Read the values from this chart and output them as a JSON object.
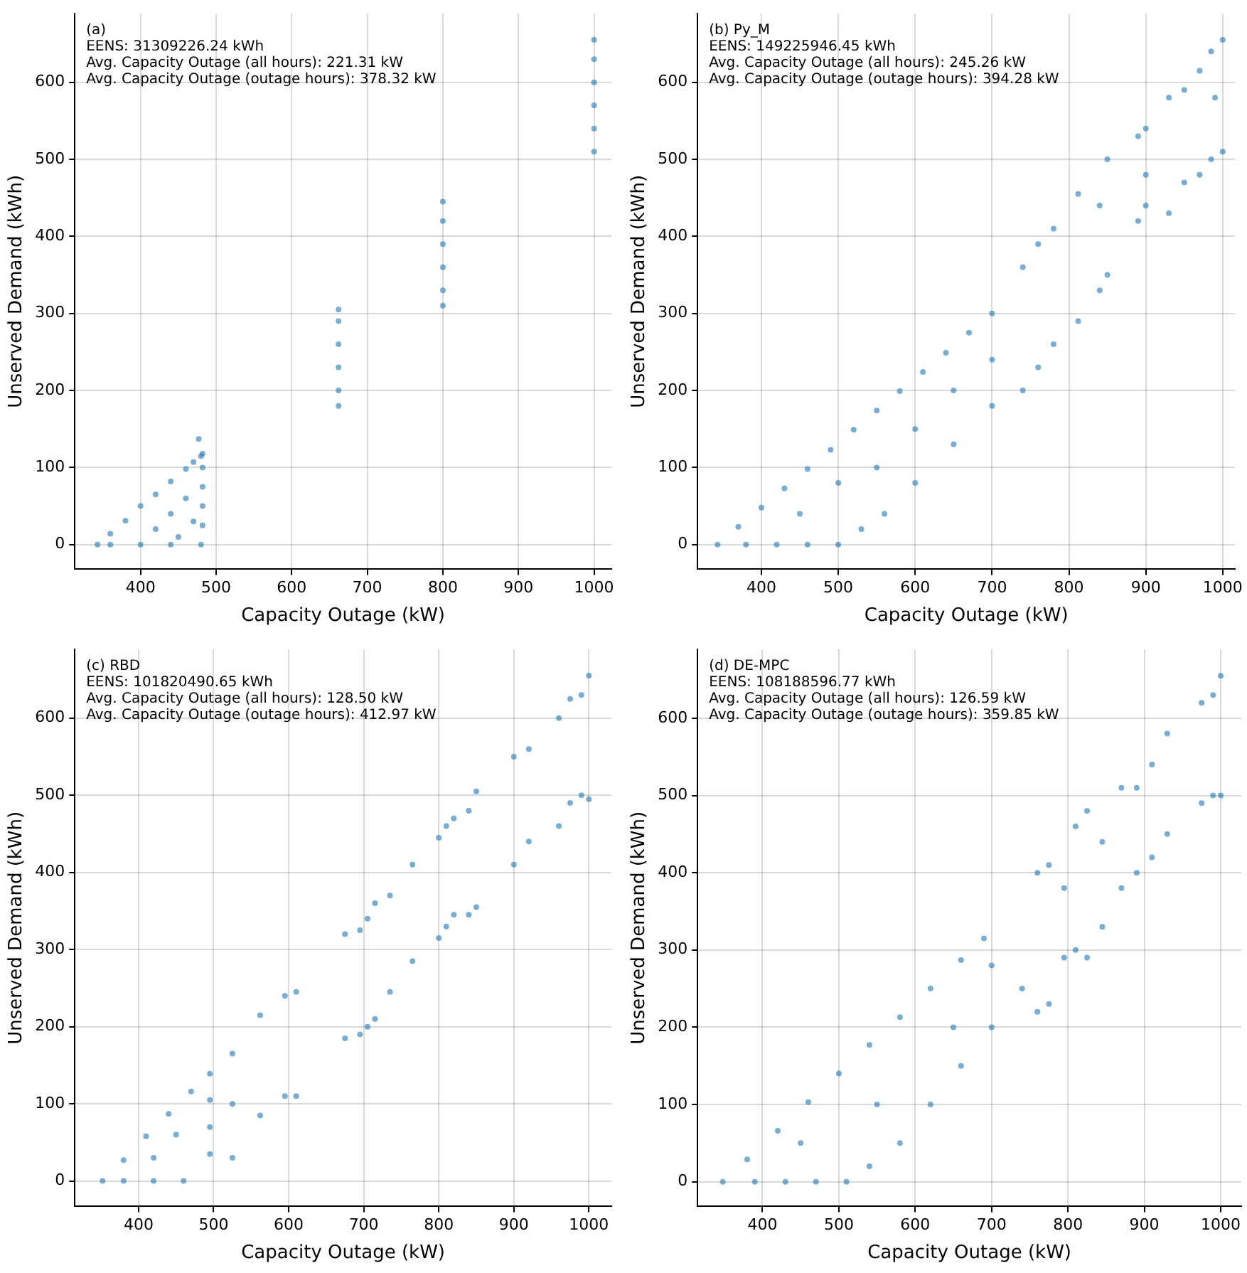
{
  "chart_data": [
    {
      "type": "scatter",
      "annotations": [
        "(a)",
        "EENS: 31309226.24 kWh",
        "Avg. Capacity Outage (all hours): 221.31 kW",
        "Avg. Capacity Outage (outage hours): 378.32 kW"
      ],
      "xlabel": "Capacity Outage (kW)",
      "ylabel": "Unserved Demand (kWh)",
      "color": "#1f77b4",
      "marker": "circle",
      "grid": true,
      "xlim": [
        313,
        1023
      ],
      "xticks": [
        400,
        500,
        600,
        700,
        800,
        900,
        1000
      ],
      "ylim": [
        -32,
        689
      ],
      "yticks": [
        0,
        100,
        200,
        300,
        400,
        500,
        600
      ],
      "x": [
        343,
        360,
        380,
        400,
        420,
        440,
        460,
        470,
        480,
        360,
        400,
        440,
        480,
        482,
        482,
        482,
        482,
        482,
        420,
        440,
        460,
        470,
        450,
        477,
        662,
        662,
        662,
        662,
        662,
        662,
        800,
        800,
        800,
        800,
        800,
        800,
        1000,
        1000,
        1000,
        1000,
        1000,
        1000
      ],
      "values": [
        0,
        14,
        31,
        50,
        65,
        82,
        98,
        107,
        115,
        0,
        0,
        0,
        0,
        25,
        50,
        75,
        100,
        118,
        20,
        40,
        60,
        30,
        10,
        137,
        180,
        200,
        230,
        260,
        290,
        305,
        310,
        330,
        360,
        390,
        420,
        445,
        510,
        540,
        570,
        600,
        630,
        655
      ]
    },
    {
      "type": "scatter",
      "annotations": [
        "(b) Py_M",
        "EENS: 149225946.45 kWh",
        "Avg. Capacity Outage (all hours): 245.26 kW",
        "Avg. Capacity Outage (outage hours): 394.28 kW"
      ],
      "xlabel": "Capacity Outage (kW)",
      "ylabel": "Unserved Demand (kWh)",
      "color": "#1f77b4",
      "marker": "circle",
      "grid": true,
      "xlim": [
        317,
        1016
      ],
      "xticks": [
        400,
        500,
        600,
        700,
        800,
        900,
        1000
      ],
      "ylim": [
        -32,
        689
      ],
      "yticks": [
        0,
        100,
        200,
        300,
        400,
        500,
        600
      ],
      "x": [
        343,
        370,
        400,
        430,
        460,
        490,
        520,
        550,
        580,
        610,
        640,
        670,
        700,
        380,
        420,
        460,
        500,
        530,
        560,
        600,
        650,
        700,
        740,
        760,
        780,
        812,
        840,
        850,
        890,
        900,
        930,
        950,
        970,
        985,
        1000,
        740,
        760,
        780,
        812,
        840,
        850,
        890,
        900,
        930,
        950,
        970,
        985,
        1000,
        450,
        500,
        550,
        600,
        650,
        700,
        900,
        990
      ],
      "values": [
        0,
        23,
        48,
        73,
        98,
        123,
        149,
        174,
        199,
        224,
        249,
        275,
        300,
        0,
        0,
        0,
        0,
        20,
        40,
        80,
        130,
        180,
        200,
        230,
        260,
        290,
        330,
        350,
        420,
        440,
        430,
        470,
        480,
        500,
        510,
        360,
        390,
        410,
        455,
        440,
        500,
        530,
        540,
        580,
        590,
        615,
        640,
        655,
        40,
        80,
        100,
        150,
        200,
        240,
        480,
        580
      ]
    },
    {
      "type": "scatter",
      "annotations": [
        "(c) RBD",
        "EENS: 101820490.65 kWh",
        "Avg. Capacity Outage (all hours): 128.50 kW",
        "Avg. Capacity Outage (outage hours): 412.97 kW"
      ],
      "xlabel": "Capacity Outage (kW)",
      "ylabel": "Unserved Demand (kWh)",
      "color": "#1f77b4",
      "marker": "circle",
      "grid": true,
      "xlim": [
        315,
        1030
      ],
      "xticks": [
        400,
        500,
        600,
        700,
        800,
        900,
        1000
      ],
      "ylim": [
        -33,
        689
      ],
      "yticks": [
        0,
        100,
        200,
        300,
        400,
        500,
        600
      ],
      "x": [
        352,
        380,
        410,
        440,
        470,
        495,
        380,
        420,
        460,
        495,
        495,
        495,
        420,
        450,
        525,
        525,
        525,
        562,
        562,
        595,
        595,
        610,
        610,
        675,
        675,
        695,
        695,
        705,
        705,
        715,
        715,
        735,
        735,
        765,
        765,
        800,
        800,
        810,
        810,
        820,
        820,
        840,
        840,
        850,
        850,
        900,
        900,
        920,
        920,
        960,
        960,
        975,
        975,
        990,
        990,
        1000,
        1000
      ],
      "values": [
        0,
        27,
        58,
        87,
        116,
        139,
        0,
        0,
        0,
        35,
        70,
        105,
        30,
        60,
        30,
        165,
        100,
        85,
        215,
        110,
        240,
        110,
        245,
        185,
        320,
        190,
        325,
        200,
        340,
        210,
        360,
        245,
        370,
        285,
        410,
        315,
        445,
        330,
        460,
        345,
        470,
        345,
        480,
        355,
        505,
        410,
        550,
        440,
        560,
        460,
        600,
        490,
        625,
        500,
        630,
        495,
        655
      ]
    },
    {
      "type": "scatter",
      "annotations": [
        "(d) DE-MPC",
        "EENS: 108188596.77 kWh",
        "Avg. Capacity Outage (all hours): 126.59 kW",
        "Avg. Capacity Outage (outage hours): 359.85 kW"
      ],
      "xlabel": "Capacity Outage (kW)",
      "ylabel": "Unserved Demand (kWh)",
      "color": "#1f77b4",
      "marker": "circle",
      "grid": true,
      "xlim": [
        315,
        1027
      ],
      "xticks": [
        400,
        500,
        600,
        700,
        800,
        900,
        1000
      ],
      "ylim": [
        -32,
        689
      ],
      "yticks": [
        0,
        100,
        200,
        300,
        400,
        500,
        600
      ],
      "x": [
        348,
        380,
        420,
        460,
        500,
        540,
        580,
        620,
        660,
        690,
        390,
        430,
        470,
        510,
        540,
        580,
        620,
        660,
        700,
        740,
        760,
        760,
        775,
        775,
        795,
        795,
        810,
        810,
        825,
        825,
        845,
        845,
        870,
        870,
        890,
        890,
        910,
        910,
        930,
        930,
        975,
        975,
        990,
        990,
        1000,
        1000,
        450,
        550,
        650,
        700
      ],
      "values": [
        0,
        29,
        66,
        103,
        140,
        177,
        213,
        250,
        287,
        315,
        0,
        0,
        0,
        0,
        20,
        50,
        100,
        150,
        200,
        250,
        220,
        400,
        230,
        410,
        290,
        380,
        300,
        460,
        290,
        480,
        330,
        440,
        380,
        510,
        400,
        510,
        420,
        540,
        450,
        580,
        490,
        620,
        500,
        630,
        500,
        655,
        50,
        100,
        200,
        280
      ]
    }
  ]
}
